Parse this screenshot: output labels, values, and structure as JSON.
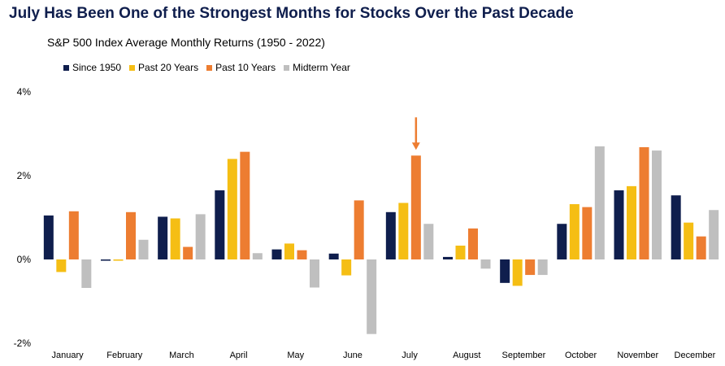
{
  "chart_data": {
    "type": "bar",
    "title": "July Has Been One of the Strongest Months for Stocks Over the Past Decade",
    "subtitle": "S&P 500 Index Average Monthly Returns (1950 - 2022)",
    "categories": [
      "January",
      "February",
      "March",
      "April",
      "May",
      "June",
      "July",
      "August",
      "September",
      "October",
      "November",
      "December"
    ],
    "series": [
      {
        "name": "Since 1950",
        "color": "#0f1e4d",
        "values": [
          1.05,
          -0.03,
          1.02,
          1.65,
          0.24,
          0.14,
          1.13,
          0.06,
          -0.56,
          0.85,
          1.65,
          1.53
        ]
      },
      {
        "name": "Past 20 Years",
        "color": "#f5be14",
        "values": [
          -0.3,
          -0.03,
          0.98,
          2.4,
          0.38,
          -0.38,
          1.35,
          0.33,
          -0.63,
          1.32,
          1.75,
          0.88
        ]
      },
      {
        "name": "Past 10 Years",
        "color": "#ed7d31",
        "values": [
          1.15,
          1.13,
          0.3,
          2.57,
          0.22,
          1.41,
          2.48,
          0.74,
          -0.37,
          1.25,
          2.68,
          0.55
        ]
      },
      {
        "name": "Midterm Year",
        "color": "#bfbfbf",
        "values": [
          -0.68,
          0.47,
          1.08,
          0.15,
          -0.67,
          -1.78,
          0.85,
          -0.22,
          -0.37,
          2.7,
          2.6,
          1.18
        ]
      }
    ],
    "yticks": [
      "4%",
      "2%",
      "0%",
      "-2%"
    ],
    "ylim": [
      -2,
      4
    ],
    "highlight": {
      "category": "July",
      "series": "Past 10 Years",
      "color": "#ed7d31"
    },
    "legend_position": "top-left",
    "grid": false
  }
}
